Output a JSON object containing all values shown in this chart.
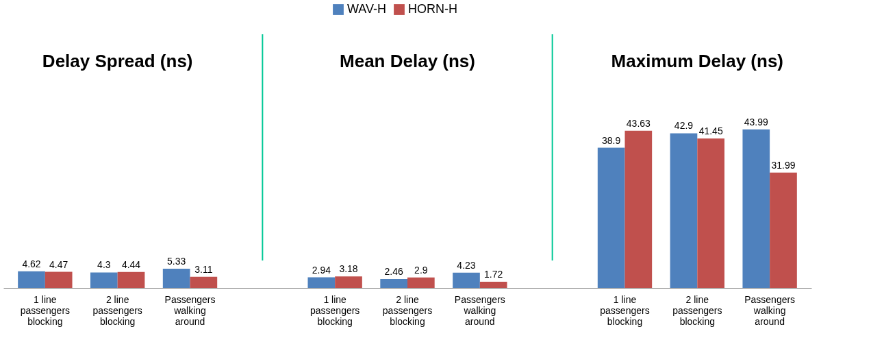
{
  "chart_data": {
    "type": "bar",
    "categories": [
      "1 line passengers blocking",
      "2 line passengers blocking",
      "Passengers walking around",
      null,
      "1 line passengers blocking",
      "2 line passengers blocking",
      "Passengers walking around",
      null,
      "1 line passengers blocking",
      "2 line passengers blocking",
      "Passengers walking around"
    ],
    "series": [
      {
        "name": "WAV-H",
        "color": "#4f81bd",
        "values": [
          4.62,
          4.3,
          5.33,
          0,
          2.94,
          2.46,
          4.23,
          0,
          38.9,
          42.9,
          43.99
        ],
        "value_labels": [
          "4.62",
          "4.3",
          "5.33",
          null,
          "2.94",
          "2.46",
          "4.23",
          null,
          "38.9",
          "42.9",
          "43.99"
        ]
      },
      {
        "name": "HORN-H",
        "color": "#c0504d",
        "values": [
          4.47,
          4.44,
          3.11,
          0,
          3.18,
          2.9,
          1.72,
          0,
          43.63,
          41.45,
          31.99
        ],
        "value_labels": [
          "4.47",
          "4.44",
          "3.11",
          null,
          "3.18",
          "2.9",
          "1.72",
          null,
          "43.63",
          "41.45",
          "31.99"
        ]
      }
    ],
    "annotations": [
      "Delay Spread (ns)",
      "Mean Delay (ns)",
      "Maximum Delay (ns)"
    ],
    "legend": "top"
  }
}
